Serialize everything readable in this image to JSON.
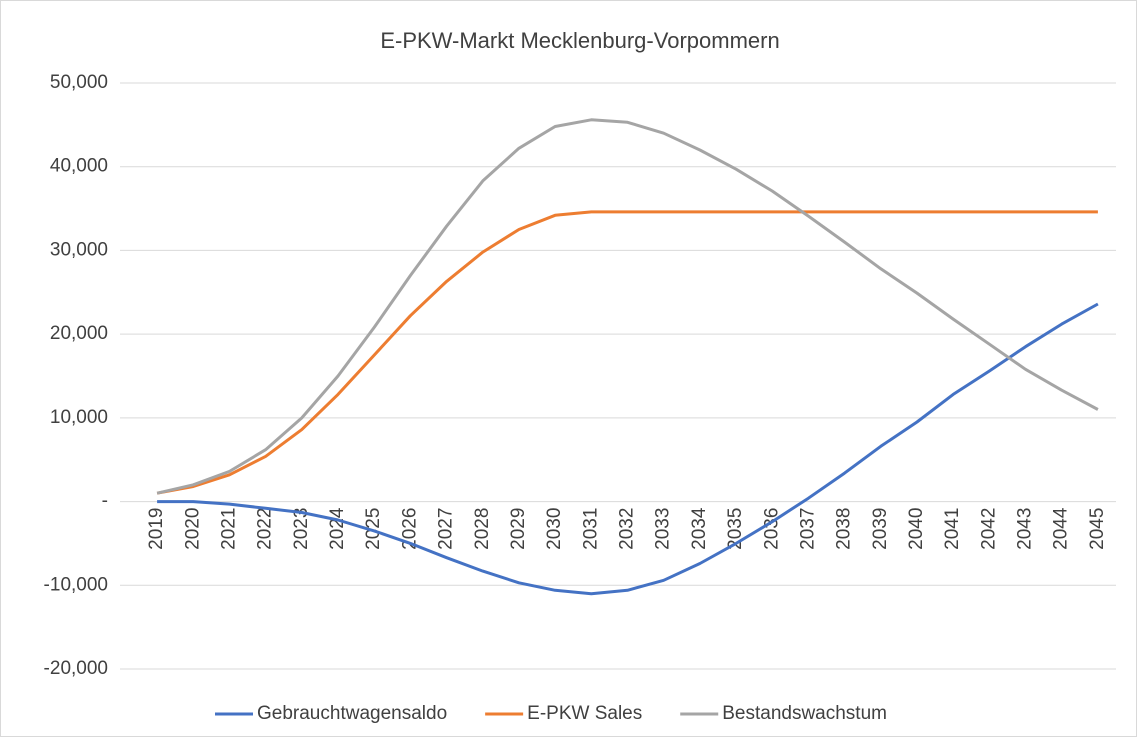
{
  "chart_data": {
    "type": "line",
    "title": "E-PKW-Markt Mecklenburg-Vorpommern",
    "categories": [
      "2019",
      "2020",
      "2021",
      "2022",
      "2023",
      "2024",
      "2025",
      "2026",
      "2027",
      "2028",
      "2029",
      "2030",
      "2031",
      "2032",
      "2033",
      "2034",
      "2035",
      "2036",
      "2037",
      "2038",
      "2039",
      "2040",
      "2041",
      "2042",
      "2043",
      "2044",
      "2045"
    ],
    "series": [
      {
        "name": "Gebrauchtwagensaldo",
        "color": "#4472c4",
        "values": [
          0,
          0,
          -300,
          -800,
          -1300,
          -2200,
          -3500,
          -5000,
          -6700,
          -8300,
          -9700,
          -10600,
          -11000,
          -10600,
          -9400,
          -7400,
          -5000,
          -2400,
          400,
          3400,
          6600,
          9500,
          12800,
          15600,
          18500,
          21200,
          23600
        ]
      },
      {
        "name": "E-PKW Sales",
        "color": "#ed7d31",
        "values": [
          1000,
          1800,
          3200,
          5400,
          8600,
          12800,
          17500,
          22200,
          26300,
          29800,
          32500,
          34200,
          34600,
          34600,
          34600,
          34600,
          34600,
          34600,
          34600,
          34600,
          34600,
          34600,
          34600,
          34600,
          34600,
          34600,
          34600
        ]
      },
      {
        "name": "Bestandswachstum",
        "color": "#a5a5a5",
        "values": [
          1000,
          2000,
          3600,
          6200,
          10000,
          15000,
          20800,
          27000,
          32900,
          38300,
          42200,
          44800,
          45600,
          45300,
          44000,
          42000,
          39700,
          37100,
          34100,
          31000,
          27800,
          24900,
          21800,
          18800,
          15800,
          13300,
          11000
        ]
      }
    ],
    "ylim": [
      -20000,
      50000
    ],
    "yticks": [
      {
        "value": -20000,
        "label": "-20,000"
      },
      {
        "value": -10000,
        "label": "-10,000"
      },
      {
        "value": 0,
        "label": "-"
      },
      {
        "value": 10000,
        "label": "10,000"
      },
      {
        "value": 20000,
        "label": "20,000"
      },
      {
        "value": 30000,
        "label": "30,000"
      },
      {
        "value": 40000,
        "label": "40,000"
      },
      {
        "value": 50000,
        "label": "50,000"
      }
    ],
    "grid": true,
    "legend": "bottom"
  }
}
